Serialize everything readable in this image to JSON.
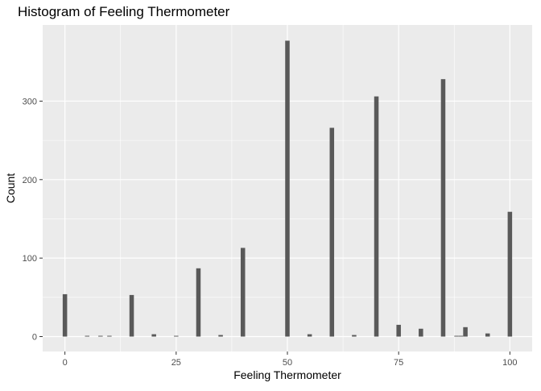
{
  "chart_data": {
    "type": "bar",
    "title": "Histogram of Feeling Thermometer",
    "xlabel": "Feeling Thermometer",
    "ylabel": "Count",
    "xlim": [
      -5,
      105
    ],
    "ylim": [
      -19,
      397
    ],
    "x_ticks": [
      0,
      25,
      50,
      75,
      100
    ],
    "y_ticks": [
      0,
      100,
      200,
      300
    ],
    "grid": true,
    "legend": "none",
    "bin_width": 1,
    "bars": [
      {
        "x": 0,
        "count": 54
      },
      {
        "x": 5,
        "count": 1
      },
      {
        "x": 8,
        "count": 1
      },
      {
        "x": 10,
        "count": 1
      },
      {
        "x": 15,
        "count": 53
      },
      {
        "x": 20,
        "count": 3
      },
      {
        "x": 25,
        "count": 1
      },
      {
        "x": 30,
        "count": 87
      },
      {
        "x": 35,
        "count": 2
      },
      {
        "x": 40,
        "count": 113
      },
      {
        "x": 50,
        "count": 377
      },
      {
        "x": 55,
        "count": 3
      },
      {
        "x": 60,
        "count": 266
      },
      {
        "x": 65,
        "count": 2
      },
      {
        "x": 70,
        "count": 306
      },
      {
        "x": 75,
        "count": 15
      },
      {
        "x": 80,
        "count": 10
      },
      {
        "x": 85,
        "count": 328
      },
      {
        "x": 88,
        "count": 1
      },
      {
        "x": 89,
        "count": 1
      },
      {
        "x": 90,
        "count": 12
      },
      {
        "x": 95,
        "count": 4
      },
      {
        "x": 100,
        "count": 159
      }
    ]
  },
  "colors": {
    "panel_background": "#EBEBEB",
    "grid_major": "#FFFFFF",
    "bar_fill": "#595959",
    "tick_text": "#4D4D4D",
    "tick_mark": "#333333",
    "label_text": "#000000"
  }
}
